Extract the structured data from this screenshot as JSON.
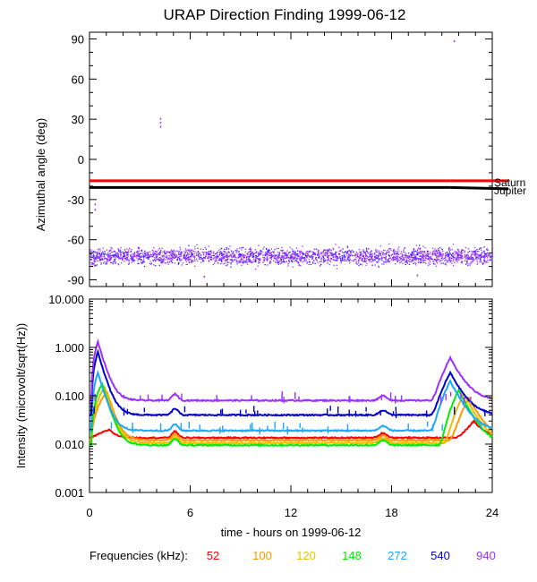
{
  "chart_data": [
    {
      "type": "scatter",
      "title": "URAP Direction Finding  1999-06-12",
      "ylabel": "Azimuthal angle (deg)",
      "ylim": [
        -95,
        95
      ],
      "yticks": [
        "90",
        "60",
        "30",
        "0",
        "-30",
        "-60",
        "-90"
      ],
      "reference_lines": [
        {
          "name": "Saturn",
          "y_start": -16,
          "y_end": -16,
          "color": "#ff0000"
        },
        {
          "name": "Jupiter",
          "y_start": -21,
          "y_end": -22,
          "color": "#000000"
        }
      ],
      "point_band": {
        "center": -72,
        "spread": 8,
        "colors": [
          "#9b30ff",
          "#1e1eff"
        ]
      },
      "outliers": [
        {
          "x": 4.2,
          "y": 31
        },
        {
          "x": 4.2,
          "y": 28
        },
        {
          "x": 4.2,
          "y": 25
        },
        {
          "x": 0.3,
          "y": -33
        },
        {
          "x": 0.3,
          "y": -37
        },
        {
          "x": 21.7,
          "y": 89
        },
        {
          "x": 6.8,
          "y": -87
        },
        {
          "x": 19.5,
          "y": -86
        }
      ]
    },
    {
      "type": "line",
      "ylabel": "Intensity (microvolt/sqrt(Hz))",
      "xlabel": "time - hours on 1999-06-12",
      "scale": "log",
      "ylim": [
        0.001,
        10
      ],
      "yticks": [
        "10.000",
        "1.000",
        "0.100",
        "0.010",
        "0.001"
      ],
      "xlim": [
        0,
        24
      ],
      "xticks": [
        "0",
        "6",
        "12",
        "18",
        "24"
      ],
      "legend_label": "Frequencies (kHz):",
      "series": [
        {
          "name": "52",
          "color": "#ff0000",
          "base": 0.0135,
          "peak0": 0.02,
          "peak2": 0.03
        },
        {
          "name": "100",
          "color": "#ff9900",
          "base": 0.012,
          "peak0": 0.12,
          "peak2": 0.09
        },
        {
          "name": "120",
          "color": "#e6c000",
          "base": 0.0105,
          "peak0": 0.15,
          "peak2": 0.11
        },
        {
          "name": "148",
          "color": "#00ee00",
          "base": 0.0095,
          "peak0": 0.18,
          "peak2": 0.13
        },
        {
          "name": "272",
          "color": "#1aa8ff",
          "base": 0.019,
          "peak0": 0.3,
          "peak2": 0.2
        },
        {
          "name": "540",
          "color": "#0000cc",
          "base": 0.04,
          "peak0": 0.8,
          "peak2": 0.3
        },
        {
          "name": "940",
          "color": "#9b30ff",
          "base": 0.08,
          "peak0": 1.3,
          "peak2": 0.6
        }
      ]
    }
  ]
}
